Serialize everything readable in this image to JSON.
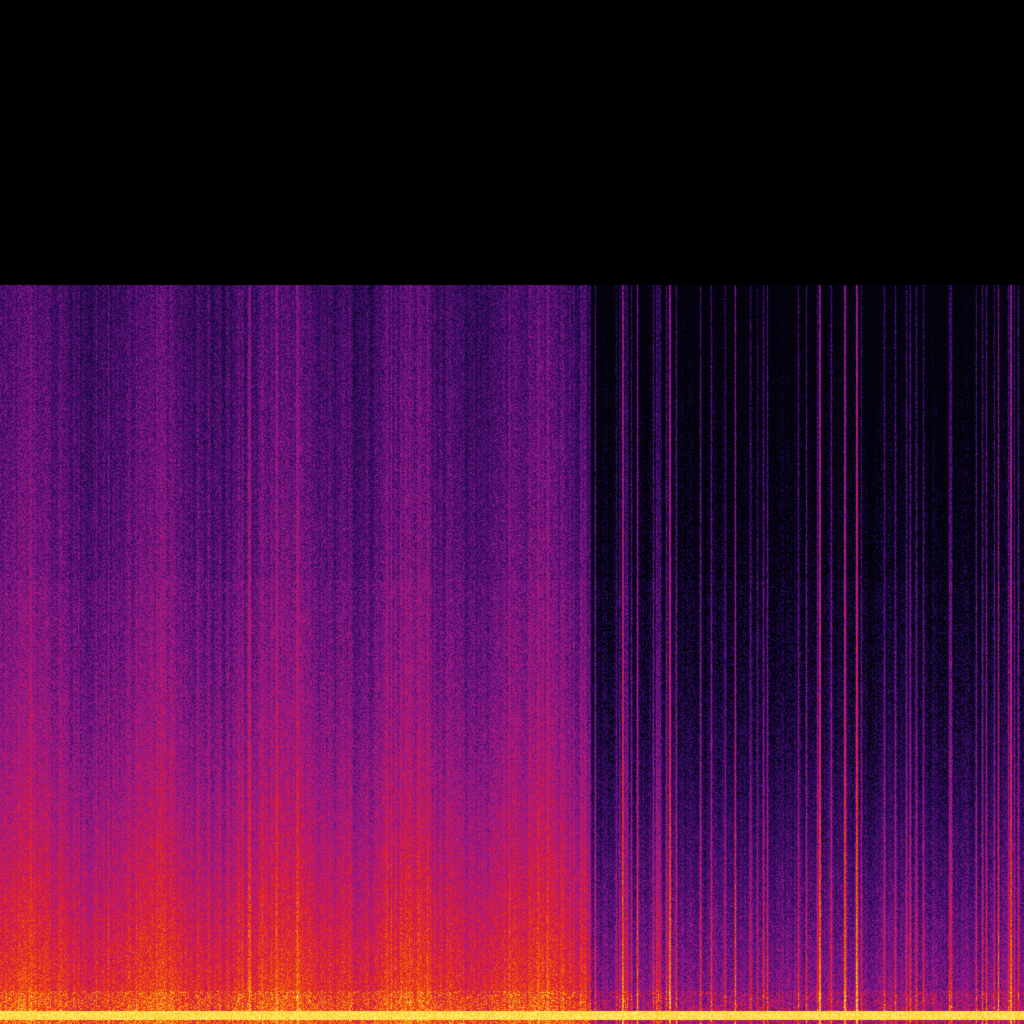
{
  "spectrogram": {
    "colormap": [
      "#000000",
      "#1a0a4a",
      "#4b0c6b",
      "#8a1a8a",
      "#c0186a",
      "#e8251c",
      "#f26a10",
      "#fbb41a",
      "#fcf06a"
    ]
  }
}
